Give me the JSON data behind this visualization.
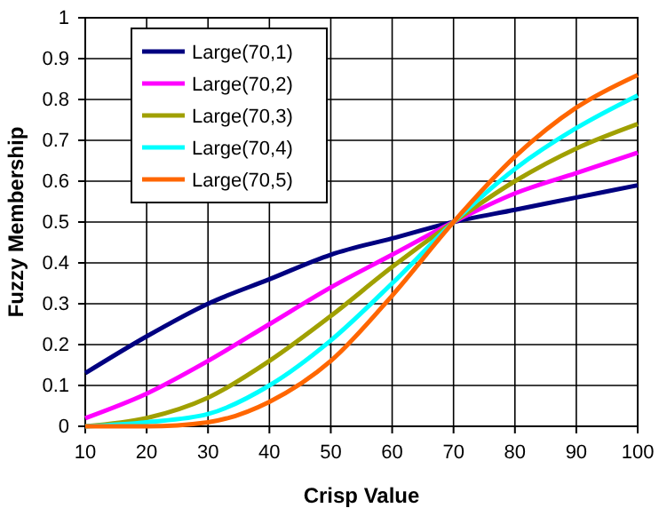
{
  "chart_data": {
    "type": "line",
    "xlabel": "Crisp Value",
    "ylabel": "Fuzzy Membership",
    "x": [
      10,
      20,
      30,
      40,
      50,
      60,
      70,
      80,
      90,
      100
    ],
    "series": [
      {
        "name": "Large(70,1)",
        "color": "#000080",
        "values": [
          0.13,
          0.22,
          0.3,
          0.36,
          0.42,
          0.46,
          0.5,
          0.53,
          0.56,
          0.59
        ]
      },
      {
        "name": "Large(70,2)",
        "color": "#ff00ff",
        "values": [
          0.02,
          0.08,
          0.16,
          0.25,
          0.34,
          0.42,
          0.5,
          0.57,
          0.62,
          0.67
        ]
      },
      {
        "name": "Large(70,3)",
        "color": "#a0a000",
        "values": [
          0.0,
          0.02,
          0.07,
          0.16,
          0.27,
          0.39,
          0.5,
          0.6,
          0.68,
          0.74
        ]
      },
      {
        "name": "Large(70,4)",
        "color": "#00ffff",
        "values": [
          0.0,
          0.01,
          0.03,
          0.1,
          0.21,
          0.35,
          0.5,
          0.63,
          0.73,
          0.81
        ]
      },
      {
        "name": "Large(70,5)",
        "color": "#ff6600",
        "values": [
          0.0,
          0.0,
          0.01,
          0.06,
          0.16,
          0.32,
          0.5,
          0.66,
          0.78,
          0.86
        ]
      }
    ],
    "xlim": [
      10,
      100
    ],
    "xticks": [
      10,
      20,
      30,
      40,
      50,
      60,
      70,
      80,
      90,
      100
    ],
    "ylim": [
      0,
      1
    ],
    "yticks": [
      0,
      0.1,
      0.2,
      0.3,
      0.4,
      0.5,
      0.6,
      0.7,
      0.8,
      0.9,
      1
    ],
    "grid": true,
    "legend": "top left",
    "marker": "none",
    "line_style": "solid"
  }
}
